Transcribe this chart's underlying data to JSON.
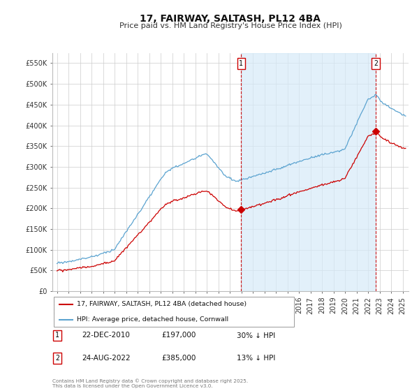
{
  "title": "17, FAIRWAY, SALTASH, PL12 4BA",
  "subtitle": "Price paid vs. HM Land Registry's House Price Index (HPI)",
  "ylabel_ticks": [
    "£0",
    "£50K",
    "£100K",
    "£150K",
    "£200K",
    "£250K",
    "£300K",
    "£350K",
    "£400K",
    "£450K",
    "£500K",
    "£550K"
  ],
  "ylim": [
    0,
    575000
  ],
  "xlim_start": 1994.6,
  "xlim_end": 2025.5,
  "hpi_color": "#5ba3d0",
  "price_color": "#cc0000",
  "dashed_color": "#cc0000",
  "shade_color": "#d6eaf8",
  "marker1_x": 2010.97,
  "marker2_x": 2022.65,
  "marker1_price": 197000,
  "marker2_price": 385000,
  "legend_label1": "17, FAIRWAY, SALTASH, PL12 4BA (detached house)",
  "legend_label2": "HPI: Average price, detached house, Cornwall",
  "annotation1_date": "22-DEC-2010",
  "annotation1_price": "£197,000",
  "annotation1_hpi": "30% ↓ HPI",
  "annotation2_date": "24-AUG-2022",
  "annotation2_price": "£385,000",
  "annotation2_hpi": "13% ↓ HPI",
  "footer": "Contains HM Land Registry data © Crown copyright and database right 2025.\nThis data is licensed under the Open Government Licence v3.0.",
  "background_color": "#ffffff",
  "grid_color": "#cccccc",
  "title_fontsize": 10,
  "subtitle_fontsize": 8
}
